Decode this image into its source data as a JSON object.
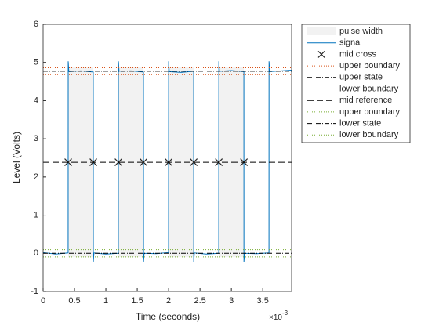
{
  "chart_data": {
    "type": "line",
    "xlabel": "Time (seconds)",
    "ylabel": "Level (Volts)",
    "x_scale_label": {
      "base": "×10",
      "exponent": "-3"
    },
    "xlim": [
      0,
      0.00396
    ],
    "xticks": [
      0,
      {
        "value": 0.0005,
        "label": "0.5"
      },
      {
        "value": 0.001,
        "label": "1"
      },
      {
        "value": 0.0015,
        "label": "1.5"
      },
      {
        "value": 0.002,
        "label": "2"
      },
      {
        "value": 0.0025,
        "label": "2.5"
      },
      {
        "value": 0.003,
        "label": "3"
      },
      {
        "value": 0.0035,
        "label": "3.5"
      }
    ],
    "ylim": [
      -1,
      6
    ],
    "yticks": [
      -1,
      0,
      1,
      2,
      3,
      4,
      5,
      6
    ],
    "legend": "outside-right",
    "series": [
      {
        "name": "pulse width",
        "kind": "band",
        "color": "#f2f2f2",
        "x_start": [
          0.0004,
          0.0012,
          0.002,
          0.0028
        ],
        "x_end": [
          0.0008,
          0.0016,
          0.0024,
          0.0032
        ],
        "y_range": [
          -0.1,
          4.87
        ]
      },
      {
        "name": "signal",
        "kind": "line",
        "color": "#0072bd",
        "x": [
          0,
          0.0002,
          0.000399,
          0.0004,
          0.00041,
          0.0006,
          0.000799,
          0.0008,
          0.00081,
          0.001,
          0.001199,
          0.0012,
          0.00121,
          0.0014,
          0.001599,
          0.0016,
          0.00161,
          0.0018,
          0.001999,
          0.002,
          0.00201,
          0.0022,
          0.002399,
          0.0024,
          0.00241,
          0.0026,
          0.002799,
          0.0028,
          0.00281,
          0.003,
          0.003199,
          0.0032,
          0.00321,
          0.0034,
          0.003599,
          0.0036,
          0.00361,
          0.0038,
          0.00396
        ],
        "values": [
          0.02,
          -0.02,
          0.01,
          5.03,
          4.76,
          4.78,
          4.75,
          -0.22,
          0.01,
          -0.02,
          0.0,
          5.03,
          4.77,
          4.78,
          4.75,
          -0.22,
          0.0,
          -0.01,
          0.02,
          5.03,
          4.76,
          4.74,
          4.77,
          -0.22,
          0.01,
          -0.02,
          0.0,
          5.03,
          4.77,
          4.79,
          4.76,
          -0.22,
          0.0,
          -0.01,
          0.01,
          5.03,
          4.76,
          4.78,
          4.8
        ]
      },
      {
        "name": "mid cross",
        "kind": "marker",
        "color": "#262626",
        "x": [
          0.0004,
          0.0008,
          0.0012,
          0.0016,
          0.002,
          0.0024,
          0.0028,
          0.0032
        ],
        "values": [
          2.385,
          2.385,
          2.385,
          2.385,
          2.385,
          2.385,
          2.385,
          2.385
        ]
      },
      {
        "name": "upper boundary",
        "kind": "hline",
        "style": "dotted",
        "color": "#d95319",
        "value": 4.86
      },
      {
        "name": "upper state",
        "kind": "hline",
        "style": "dashdot",
        "color": "#000000",
        "value": 4.77
      },
      {
        "name": "lower boundary",
        "kind": "hline",
        "style": "dotted",
        "color": "#d95319",
        "value": 4.68
      },
      {
        "name": "mid reference",
        "kind": "hline",
        "style": "dashed",
        "color": "#000000",
        "value": 2.385
      },
      {
        "name": "upper boundary",
        "kind": "hline",
        "style": "dotted",
        "color": "#77ac30",
        "value": 0.095
      },
      {
        "name": "lower state",
        "kind": "hline",
        "style": "dashdot",
        "color": "#000000",
        "value": 0.0
      },
      {
        "name": "lower boundary",
        "kind": "hline",
        "style": "dotted",
        "color": "#77ac30",
        "value": -0.095
      }
    ]
  }
}
